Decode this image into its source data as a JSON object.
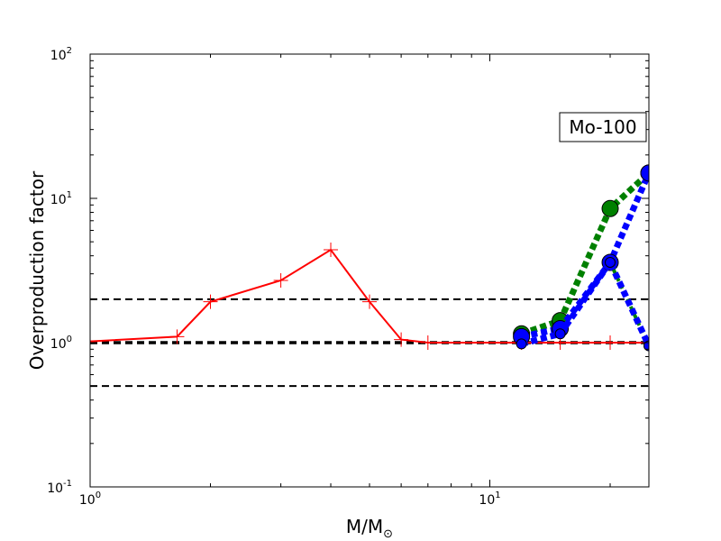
{
  "chart_data": {
    "type": "line",
    "xscale": "log",
    "yscale": "log",
    "xlim": [
      1,
      25
    ],
    "ylim": [
      0.1,
      100
    ],
    "xlabel": {
      "main": "M/M",
      "sub": "⊙"
    },
    "ylabel": "Overproduction factor",
    "xticks": [
      {
        "value": 1,
        "base": "10",
        "exp": "0"
      },
      {
        "value": 10,
        "base": "10",
        "exp": "1"
      }
    ],
    "yticks": [
      {
        "value": 0.1,
        "base": "10",
        "exp": "-1"
      },
      {
        "value": 1,
        "base": "10",
        "exp": "0"
      },
      {
        "value": 10,
        "base": "10",
        "exp": "1"
      },
      {
        "value": 100,
        "base": "10",
        "exp": "2"
      }
    ],
    "annotation": "Mo-100",
    "reference_lines": [
      {
        "y": 2.0,
        "style": "dashed",
        "color": "#000000"
      },
      {
        "y": 1.0,
        "style": "dashed-thick",
        "color": "#000000"
      },
      {
        "y": 0.5,
        "style": "dashed",
        "color": "#000000"
      }
    ],
    "series": [
      {
        "color": "#ff0000",
        "style": "solid",
        "marker": "plus",
        "points": [
          [
            1.0,
            1.02
          ],
          [
            1.65,
            1.1
          ],
          [
            2.0,
            1.92
          ],
          [
            3.0,
            2.7
          ],
          [
            4.0,
            4.4
          ],
          [
            5.0,
            1.92
          ],
          [
            6.0,
            1.05
          ],
          [
            7.0,
            1.0
          ],
          [
            12.0,
            1.0
          ],
          [
            15.0,
            1.0
          ],
          [
            20.0,
            1.0
          ],
          [
            25.0,
            1.0
          ]
        ]
      },
      {
        "color": "#008000",
        "style": "dotted",
        "marker": "circle",
        "points": [
          [
            12.0,
            1.15
          ],
          [
            15.0,
            1.42
          ],
          [
            20.0,
            8.5
          ],
          [
            25.0,
            15.0
          ]
        ]
      },
      {
        "color": "#0000ff",
        "style": "dotted",
        "marker": "circle",
        "points": [
          [
            12.0,
            1.1
          ],
          [
            15.0,
            1.25
          ],
          [
            20.0,
            3.6
          ],
          [
            25.0,
            15.0
          ]
        ]
      },
      {
        "color": "#008000",
        "style": "dotted-thin",
        "marker": "none",
        "points": [
          [
            20.0,
            3.6
          ],
          [
            25.0,
            0.95
          ]
        ]
      },
      {
        "color": "#0000ff",
        "style": "dotted",
        "marker": "circle-small",
        "points": [
          [
            12.0,
            0.98
          ],
          [
            15.0,
            1.15
          ],
          [
            20.0,
            3.6
          ],
          [
            25.0,
            0.95
          ]
        ]
      }
    ]
  }
}
